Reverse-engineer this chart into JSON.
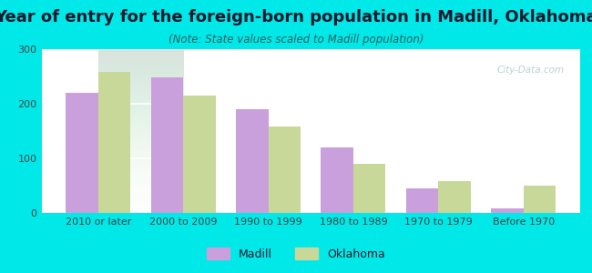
{
  "title": "Year of entry for the foreign-born population in Madill, Oklahoma",
  "subtitle": "(Note: State values scaled to Madill population)",
  "categories": [
    "2010 or later",
    "2000 to 2009",
    "1990 to 1999",
    "1980 to 1989",
    "1970 to 1979",
    "Before 1970"
  ],
  "madill_values": [
    220,
    248,
    190,
    120,
    45,
    8
  ],
  "oklahoma_values": [
    258,
    215,
    158,
    90,
    58,
    50
  ],
  "madill_color": "#c9a0dc",
  "oklahoma_color": "#c8d898",
  "background_outer": "#00e8e8",
  "background_inner_top": "#e8f5e8",
  "background_inner_bottom": "#ffffff",
  "ylim": [
    0,
    300
  ],
  "yticks": [
    0,
    100,
    200,
    300
  ],
  "bar_width": 0.38,
  "legend_labels": [
    "Madill",
    "Oklahoma"
  ],
  "title_fontsize": 13,
  "subtitle_fontsize": 8.5,
  "tick_fontsize": 8,
  "legend_fontsize": 9,
  "title_color": "#1a1a2e",
  "subtitle_color": "#2a6060",
  "tick_color": "#444444"
}
